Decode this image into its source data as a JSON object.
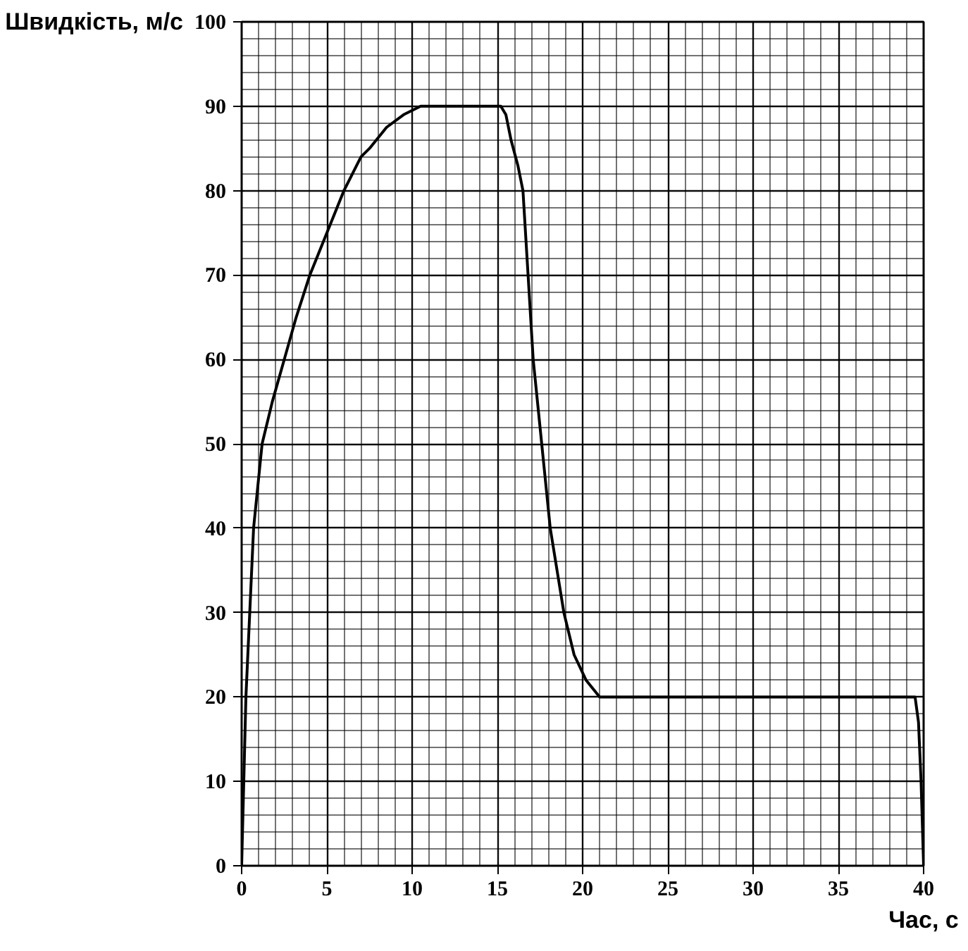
{
  "chart_data": {
    "type": "line",
    "xlabel": "Час, с",
    "ylabel": "Швидкість, м/с",
    "x": [
      0,
      0.25,
      0.7,
      1.2,
      1.8,
      2.5,
      3.2,
      4,
      5,
      6,
      7,
      7.5,
      8.5,
      9.5,
      10.5,
      12,
      15.2,
      15.5,
      15.8,
      16.2,
      16.5,
      16.8,
      17.1,
      17.6,
      18.1,
      18.5,
      18.9,
      19.5,
      20.2,
      21,
      25,
      30,
      35,
      39.5,
      39.7,
      39.85,
      40
    ],
    "series": [
      {
        "color": "#000000",
        "values": [
          0,
          20,
          40,
          50,
          55,
          60,
          65,
          70,
          75,
          80,
          84,
          85,
          87.5,
          89,
          90,
          90,
          90,
          89,
          86,
          83,
          80,
          70,
          60,
          50,
          40,
          35,
          30,
          25,
          22,
          20,
          20,
          20,
          20,
          20,
          17,
          10,
          0
        ]
      }
    ],
    "xlim": [
      0,
      40
    ],
    "ylim": [
      0,
      100
    ],
    "xticks": [
      0,
      5,
      10,
      15,
      20,
      25,
      30,
      35,
      40
    ],
    "yticks": [
      0,
      10,
      20,
      30,
      40,
      50,
      60,
      70,
      80,
      90,
      100
    ],
    "grid": true,
    "marker": "none",
    "line_style": "solid"
  }
}
